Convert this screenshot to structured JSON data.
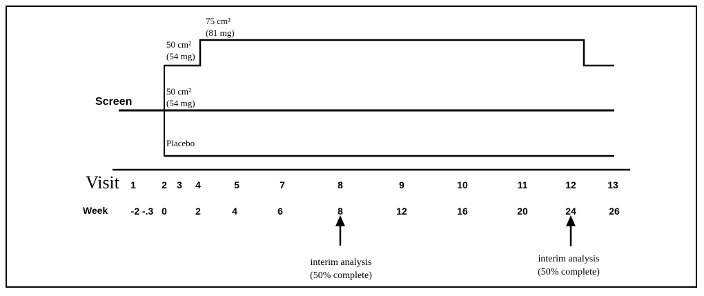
{
  "labels": {
    "screen": "Screen",
    "visit_title": "Visit",
    "week_title": "Week"
  },
  "arms": {
    "high_start_dose_line1": "50 cm²",
    "high_start_dose_line2": "(54 mg)",
    "high_step_dose_line1": "75 cm²",
    "high_step_dose_line2": "(81 mg)",
    "mid_dose_line1": "50 cm²",
    "mid_dose_line2": "(54 mg)",
    "placebo": "Placebo"
  },
  "visits": [
    "1",
    "2",
    "3",
    "4",
    "5",
    "7",
    "8",
    "9",
    "10",
    "11",
    "12",
    "13"
  ],
  "weeks": [
    "-2 -.3",
    "0",
    "2",
    "4",
    "6",
    "8",
    "12",
    "16",
    "20",
    "24",
    "26"
  ],
  "annotations": [
    {
      "line1": "interim analysis",
      "line2": "(50% complete)"
    },
    {
      "line1": "interim analysis",
      "line2": "(50% complete)"
    }
  ]
}
